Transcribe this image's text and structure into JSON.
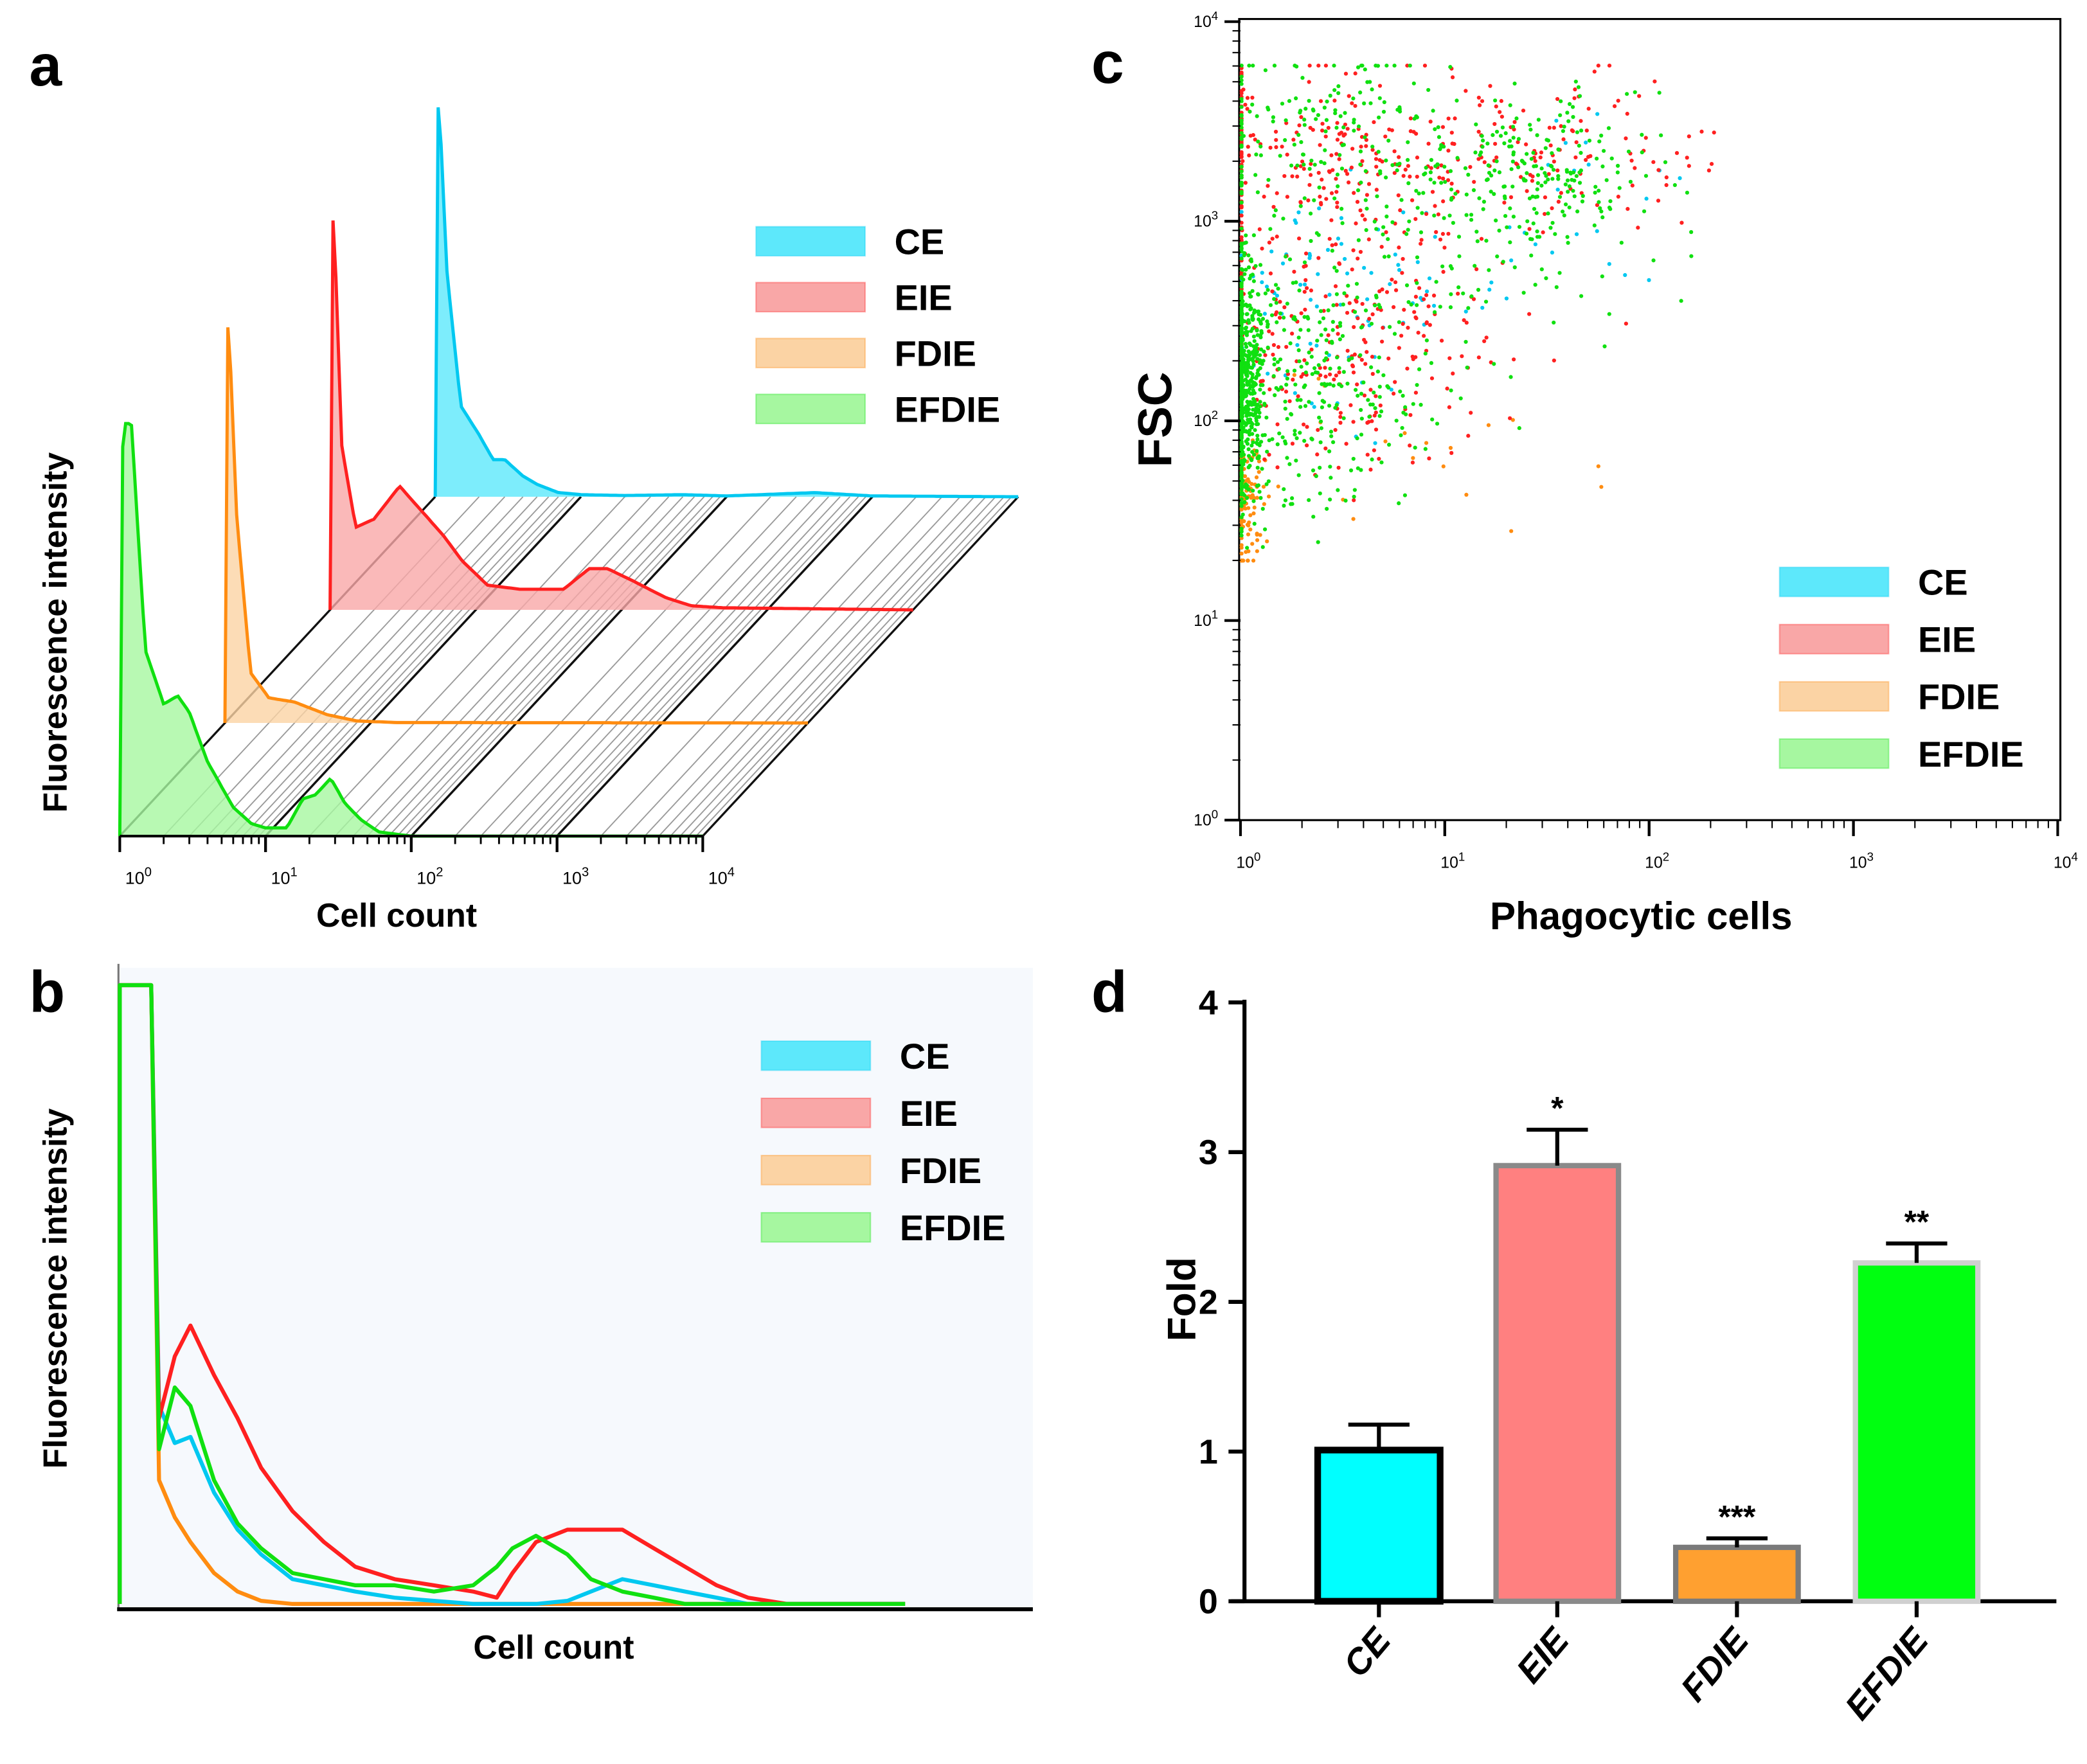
{
  "panels": {
    "a": {
      "letter": "a"
    },
    "b": {
      "letter": "b"
    },
    "c": {
      "letter": "c"
    },
    "d": {
      "letter": "d"
    }
  },
  "legend": [
    {
      "name": "CE",
      "color": "#00c8f0",
      "fill": "#5de8fb"
    },
    {
      "name": "EIE",
      "color": "#ff2020",
      "fill": "#f9a7a7"
    },
    {
      "name": "FDIE",
      "color": "#ff8c10",
      "fill": "#fbd3a4"
    },
    {
      "name": "EFDIE",
      "color": "#10e010",
      "fill": "#a6f7a0"
    }
  ],
  "chart_data": [
    {
      "id": "a",
      "type": "area",
      "title": "",
      "xlabel": "Cell count",
      "ylabel": "Fluorescence intensity",
      "xscale": "log",
      "xlim": [
        1,
        10000
      ],
      "xticks": [
        "10^0",
        "10^1",
        "10^2",
        "10^3",
        "10^4"
      ],
      "layout": "3D offset stacked histograms (CE back, EFDIE front)",
      "series": [
        {
          "name": "CE",
          "x": [
            1,
            1.05,
            1.2,
            1.5,
            2,
            2.5,
            3,
            4,
            5,
            7,
            10,
            20,
            50,
            100,
            400,
            1000,
            10000
          ],
          "y": [
            0,
            1.0,
            0.55,
            0.22,
            0.15,
            0.09,
            0.09,
            0.05,
            0.03,
            0.01,
            0.005,
            0.003,
            0.005,
            0.002,
            0.01,
            0.002,
            0
          ]
        },
        {
          "name": "EIE",
          "x": [
            1,
            1.05,
            1.2,
            1.5,
            2,
            3,
            4,
            6,
            8,
            12,
            20,
            40,
            60,
            80,
            120,
            200,
            300,
            500,
            10000
          ],
          "y": [
            0,
            1.0,
            0.4,
            0.2,
            0.22,
            0.3,
            0.25,
            0.18,
            0.12,
            0.06,
            0.05,
            0.05,
            0.1,
            0.1,
            0.07,
            0.03,
            0.01,
            0.005,
            0
          ]
        },
        {
          "name": "FDIE",
          "x": [
            1,
            1.05,
            1.2,
            1.5,
            2,
            3,
            5,
            8,
            15,
            10000
          ],
          "y": [
            0,
            1.0,
            0.5,
            0.12,
            0.06,
            0.05,
            0.02,
            0.005,
            0.001,
            0
          ]
        },
        {
          "name": "EFDIE",
          "x": [
            1,
            1.05,
            1.2,
            1.5,
            2,
            2.5,
            3,
            4,
            6,
            8,
            10,
            14,
            18,
            22,
            28,
            35,
            45,
            60,
            100,
            10000
          ],
          "y": [
            0,
            1.0,
            1.0,
            0.45,
            0.32,
            0.34,
            0.3,
            0.18,
            0.07,
            0.03,
            0.02,
            0.02,
            0.09,
            0.1,
            0.14,
            0.08,
            0.04,
            0.01,
            0,
            0
          ]
        }
      ]
    },
    {
      "id": "b",
      "type": "line",
      "title": "",
      "xlabel": "Cell count",
      "ylabel": "Fluorescence intensity",
      "x": [
        0,
        2,
        4,
        5,
        7,
        9,
        12,
        15,
        18,
        22,
        26,
        30,
        35,
        40,
        45,
        48,
        50,
        53,
        57,
        60,
        64,
        68,
        72,
        76,
        80,
        85,
        90,
        100
      ],
      "series": [
        {
          "name": "CE",
          "y": [
            100,
            100,
            100,
            32,
            26,
            27,
            18,
            12,
            8,
            4,
            3,
            2,
            1,
            0.5,
            0,
            0,
            0,
            0,
            0.5,
            2,
            4,
            3,
            2,
            1,
            0,
            0,
            0,
            0
          ]
        },
        {
          "name": "EIE",
          "y": [
            100,
            100,
            100,
            30,
            40,
            45,
            37,
            30,
            22,
            15,
            10,
            6,
            4,
            3,
            2,
            1,
            5,
            10,
            12,
            12,
            12,
            9,
            6,
            3,
            1,
            0,
            0,
            0
          ]
        },
        {
          "name": "FDIE",
          "y": [
            100,
            100,
            100,
            20,
            14,
            10,
            5,
            2,
            0.5,
            0,
            0,
            0,
            0,
            0,
            0,
            0,
            0,
            0,
            0,
            0,
            0,
            0,
            0,
            0,
            0,
            0,
            0,
            0
          ]
        },
        {
          "name": "EFDIE",
          "y": [
            100,
            100,
            100,
            25,
            35,
            32,
            20,
            13,
            9,
            5,
            4,
            3,
            3,
            2,
            3,
            6,
            9,
            11,
            8,
            4,
            2,
            1,
            0,
            0,
            0,
            0,
            0,
            0
          ]
        }
      ],
      "ylim": [
        0,
        100
      ]
    },
    {
      "id": "c",
      "type": "scatter",
      "title": "",
      "xlabel": "Phagocytic cells",
      "ylabel": "FSC",
      "xscale": "log",
      "yscale": "log",
      "xlim": [
        1,
        10000
      ],
      "ylim": [
        1,
        10000
      ],
      "xticks": [
        "10^0",
        "10^1",
        "10^2",
        "10^3",
        "10^4"
      ],
      "yticks": [
        "10^0",
        "10^1",
        "10^2",
        "10^3",
        "10^4"
      ],
      "series": [
        {
          "name": "CE",
          "clusters": [
            {
              "x": 2.2,
              "y": 400,
              "n": 90,
              "sx": 0.35,
              "sy": 0.3
            },
            {
              "x": 50,
              "y": 900,
              "n": 25,
              "sx": 0.35,
              "sy": 0.25
            }
          ]
        },
        {
          "name": "EIE",
          "clusters": [
            {
              "x": 2.5,
              "y": 2200,
              "n": 220,
              "sx": 0.45,
              "sy": 0.25
            },
            {
              "x": 2.5,
              "y": 200,
              "n": 220,
              "sx": 0.35,
              "sy": 0.3
            },
            {
              "x": 40,
              "y": 2500,
              "n": 90,
              "sx": 0.35,
              "sy": 0.22
            },
            {
              "x": 8,
              "y": 700,
              "n": 90,
              "sx": 0.45,
              "sy": 0.35
            }
          ]
        },
        {
          "name": "FDIE",
          "clusters": [
            {
              "x": 1.05,
              "y": 38,
              "n": 120,
              "sx": 0.04,
              "sy": 0.15
            },
            {
              "x": 6,
              "y": 60,
              "n": 20,
              "sx": 0.5,
              "sy": 0.2
            }
          ]
        },
        {
          "name": "EFDIE",
          "clusters": [
            {
              "x": 1.05,
              "y": 150,
              "n": 500,
              "sx": 0.05,
              "sy": 0.3
            },
            {
              "x": 2.2,
              "y": 150,
              "n": 300,
              "sx": 0.3,
              "sy": 0.3
            },
            {
              "x": 2.5,
              "y": 2500,
              "n": 200,
              "sx": 0.4,
              "sy": 0.25
            },
            {
              "x": 30,
              "y": 1600,
              "n": 220,
              "sx": 0.3,
              "sy": 0.2
            },
            {
              "x": 8,
              "y": 500,
              "n": 80,
              "sx": 0.5,
              "sy": 0.4
            }
          ]
        }
      ]
    },
    {
      "id": "d",
      "type": "bar",
      "title": "",
      "xlabel": "",
      "ylabel": "Fold",
      "ylim": [
        0,
        4
      ],
      "yticks": [
        0,
        1,
        2,
        3,
        4
      ],
      "categories": [
        "CE",
        "EIE",
        "FDIE",
        "EFDIE"
      ],
      "values": [
        1.01,
        2.91,
        0.36,
        2.26
      ],
      "errors": [
        0.17,
        0.24,
        0.06,
        0.13
      ],
      "significance": [
        "",
        "*",
        "***",
        "**"
      ],
      "bar_colors": [
        "#00ffff",
        "#ff8080",
        "#ffa030",
        "#00ff10"
      ],
      "border_colors": [
        "#000000",
        "#8a8a8a",
        "#7a7a7a",
        "#d0d0d0"
      ]
    }
  ]
}
